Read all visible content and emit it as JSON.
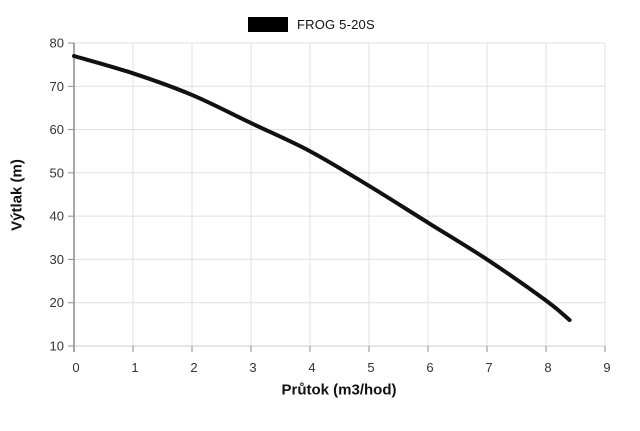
{
  "chart_data": {
    "type": "line",
    "title": "",
    "xlabel": "Průtok (m3/hod)",
    "ylabel": "Výtlak (m)",
    "xlim": [
      0,
      9
    ],
    "ylim": [
      10,
      80
    ],
    "x_ticks": [
      0,
      1,
      2,
      3,
      4,
      5,
      6,
      7,
      8,
      9
    ],
    "y_ticks": [
      10,
      20,
      30,
      40,
      50,
      60,
      70,
      80
    ],
    "grid": true,
    "legend_position": "top-center",
    "legend": [
      {
        "label": "FROG 5-20S",
        "color": "#000000"
      }
    ],
    "series": [
      {
        "name": "FROG 5-20S",
        "color": "#111111",
        "x": [
          0,
          1,
          2,
          3,
          4,
          5,
          6,
          7,
          8,
          8.4
        ],
        "y": [
          77,
          73,
          68,
          61.5,
          55,
          47,
          38.5,
          30,
          20.5,
          16
        ]
      }
    ]
  },
  "colors": {
    "background": "#ffffff",
    "grid": "#e0e0e0",
    "bottom_line": "#cccccc",
    "axis": "#8c8c8c",
    "tick_text": "#333333",
    "curve": "#111111",
    "legend_swatch": "#000000"
  }
}
